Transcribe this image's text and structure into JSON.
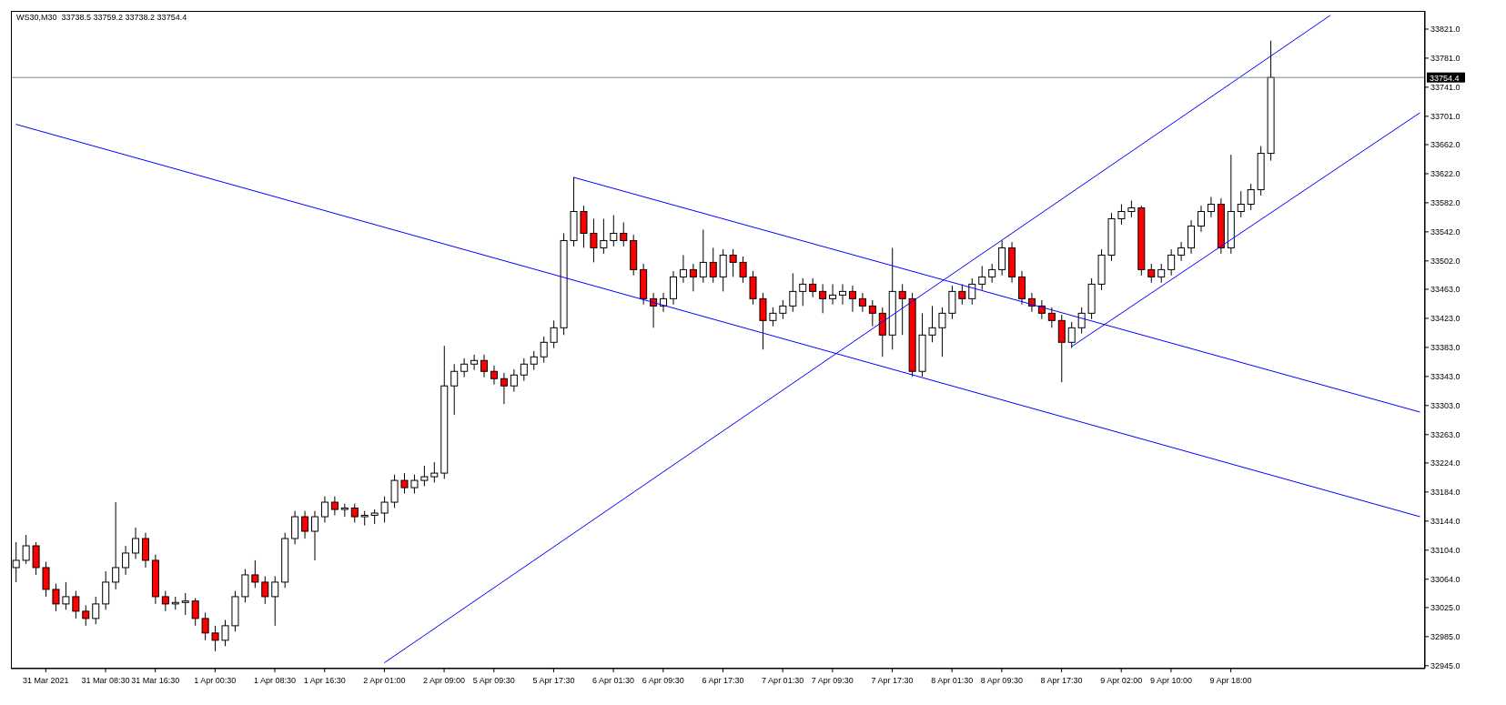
{
  "chart_data": {
    "type": "candlestick",
    "title": "WS30,M30  33738.5 33759.2 33738.2 33754.4",
    "categories": [
      null,
      null,
      null,
      "31 Mar 2021",
      null,
      null,
      null,
      null,
      null,
      "31 Mar 08:30",
      null,
      null,
      null,
      null,
      "31 Mar 16:30",
      null,
      null,
      null,
      null,
      null,
      "1 Apr 00:30",
      null,
      null,
      null,
      null,
      null,
      "1 Apr 08:30",
      null,
      null,
      null,
      null,
      "1 Apr 16:30",
      null,
      null,
      null,
      null,
      null,
      "2 Apr 01:00",
      null,
      null,
      null,
      null,
      null,
      "2 Apr 09:00",
      null,
      null,
      null,
      null,
      "5 Apr 09:30",
      null,
      null,
      null,
      null,
      null,
      "5 Apr 17:30",
      null,
      null,
      null,
      null,
      null,
      "6 Apr 01:30",
      null,
      null,
      null,
      null,
      "6 Apr 09:30",
      null,
      null,
      null,
      null,
      null,
      "6 Apr 17:30",
      null,
      null,
      null,
      null,
      null,
      "7 Apr 01:30",
      null,
      null,
      null,
      null,
      "7 Apr 09:30",
      null,
      null,
      null,
      null,
      null,
      "7 Apr 17:30",
      null,
      null,
      null,
      null,
      null,
      "8 Apr 01:30",
      null,
      null,
      null,
      null,
      "8 Apr 09:30",
      null,
      null,
      null,
      null,
      null,
      "8 Apr 17:30",
      null,
      null,
      null,
      null,
      null,
      "9 Apr 02:00",
      null,
      null,
      null,
      null,
      "9 Apr 10:00",
      null,
      null,
      null,
      null,
      null,
      "9 Apr 18:00",
      null,
      null,
      null,
      null,
      null,
      null,
      null,
      null,
      null,
      null,
      null,
      null,
      null,
      null,
      null,
      null,
      null,
      null,
      null
    ],
    "ohlc": [
      [
        33080,
        33115,
        33060,
        33090
      ],
      [
        33090,
        33125,
        33085,
        33110
      ],
      [
        33110,
        33115,
        33070,
        33080
      ],
      [
        33080,
        33088,
        33040,
        33050
      ],
      [
        33050,
        33058,
        33020,
        33030
      ],
      [
        33030,
        33060,
        33022,
        33040
      ],
      [
        33040,
        33048,
        33010,
        33020
      ],
      [
        33020,
        33028,
        33000,
        33010
      ],
      [
        33010,
        33040,
        33002,
        33030
      ],
      [
        33030,
        33075,
        33022,
        33060
      ],
      [
        33060,
        33170,
        33050,
        33080
      ],
      [
        33080,
        33110,
        33070,
        33100
      ],
      [
        33100,
        33135,
        33092,
        33120
      ],
      [
        33120,
        33128,
        33080,
        33090
      ],
      [
        33090,
        33098,
        33030,
        33040
      ],
      [
        33040,
        33048,
        33020,
        33030
      ],
      [
        33030,
        33040,
        33022,
        33032
      ],
      [
        33032,
        33045,
        33015,
        33034
      ],
      [
        33034,
        33038,
        33000,
        33010
      ],
      [
        33010,
        33018,
        32980,
        32990
      ],
      [
        32990,
        33000,
        32965,
        32980
      ],
      [
        32980,
        33008,
        32972,
        33000
      ],
      [
        33000,
        33048,
        32992,
        33040
      ],
      [
        33040,
        33078,
        33032,
        33070
      ],
      [
        33070,
        33090,
        33052,
        33060
      ],
      [
        33060,
        33068,
        33030,
        33040
      ],
      [
        33040,
        33068,
        33000,
        33060
      ],
      [
        33060,
        33128,
        33052,
        33120
      ],
      [
        33120,
        33158,
        33112,
        33150
      ],
      [
        33150,
        33158,
        33120,
        33130
      ],
      [
        33130,
        33158,
        33090,
        33150
      ],
      [
        33150,
        33178,
        33142,
        33170
      ],
      [
        33170,
        33178,
        33152,
        33160
      ],
      [
        33160,
        33168,
        33150,
        33162
      ],
      [
        33162,
        33168,
        33142,
        33150
      ],
      [
        33150,
        33158,
        33138,
        33152
      ],
      [
        33152,
        33160,
        33140,
        33155
      ],
      [
        33155,
        33178,
        33142,
        33170
      ],
      [
        33170,
        33208,
        33162,
        33200
      ],
      [
        33200,
        33210,
        33182,
        33190
      ],
      [
        33190,
        33208,
        33182,
        33200
      ],
      [
        33200,
        33220,
        33192,
        33205
      ],
      [
        33205,
        33225,
        33197,
        33210
      ],
      [
        33210,
        33385,
        33202,
        33330
      ],
      [
        33330,
        33360,
        33290,
        33350
      ],
      [
        33350,
        33368,
        33342,
        33360
      ],
      [
        33360,
        33373,
        33352,
        33365
      ],
      [
        33365,
        33373,
        33342,
        33350
      ],
      [
        33350,
        33358,
        33332,
        33340
      ],
      [
        33340,
        33348,
        33305,
        33330
      ],
      [
        33330,
        33353,
        33322,
        33345
      ],
      [
        33345,
        33368,
        33337,
        33360
      ],
      [
        33360,
        33378,
        33352,
        33370
      ],
      [
        33370,
        33398,
        33362,
        33390
      ],
      [
        33390,
        33420,
        33382,
        33410
      ],
      [
        33410,
        33540,
        33400,
        33530
      ],
      [
        33530,
        33617,
        33522,
        33570
      ],
      [
        33570,
        33578,
        33520,
        33540
      ],
      [
        33540,
        33560,
        33500,
        33520
      ],
      [
        33520,
        33560,
        33512,
        33530
      ],
      [
        33530,
        33565,
        33522,
        33540
      ],
      [
        33540,
        33555,
        33522,
        33530
      ],
      [
        33530,
        33538,
        33482,
        33490
      ],
      [
        33490,
        33498,
        33442,
        33450
      ],
      [
        33450,
        33458,
        33410,
        33440
      ],
      [
        33440,
        33458,
        33432,
        33450
      ],
      [
        33450,
        33488,
        33442,
        33480
      ],
      [
        33480,
        33510,
        33472,
        33490
      ],
      [
        33490,
        33498,
        33460,
        33480
      ],
      [
        33480,
        33545,
        33472,
        33500
      ],
      [
        33500,
        33520,
        33472,
        33480
      ],
      [
        33480,
        33518,
        33460,
        33510
      ],
      [
        33510,
        33518,
        33480,
        33500
      ],
      [
        33500,
        33508,
        33472,
        33480
      ],
      [
        33480,
        33488,
        33442,
        33450
      ],
      [
        33450,
        33458,
        33380,
        33420
      ],
      [
        33420,
        33438,
        33412,
        33430
      ],
      [
        33430,
        33448,
        33422,
        33440
      ],
      [
        33440,
        33485,
        33432,
        33460
      ],
      [
        33460,
        33478,
        33440,
        33470
      ],
      [
        33470,
        33478,
        33452,
        33460
      ],
      [
        33460,
        33470,
        33430,
        33450
      ],
      [
        33450,
        33470,
        33442,
        33455
      ],
      [
        33455,
        33470,
        33442,
        33460
      ],
      [
        33460,
        33468,
        33432,
        33450
      ],
      [
        33450,
        33458,
        33432,
        33440
      ],
      [
        33440,
        33448,
        33412,
        33430
      ],
      [
        33430,
        33438,
        33370,
        33400
      ],
      [
        33400,
        33520,
        33380,
        33460
      ],
      [
        33460,
        33470,
        33400,
        33450
      ],
      [
        33450,
        33458,
        33343,
        33350
      ],
      [
        33350,
        33430,
        33343,
        33400
      ],
      [
        33400,
        33440,
        33390,
        33410
      ],
      [
        33410,
        33438,
        33370,
        33430
      ],
      [
        33430,
        33468,
        33422,
        33460
      ],
      [
        33460,
        33470,
        33442,
        33450
      ],
      [
        33450,
        33478,
        33442,
        33470
      ],
      [
        33470,
        33495,
        33462,
        33480
      ],
      [
        33480,
        33498,
        33472,
        33490
      ],
      [
        33490,
        33530,
        33482,
        33520
      ],
      [
        33520,
        33528,
        33472,
        33480
      ],
      [
        33480,
        33488,
        33442,
        33450
      ],
      [
        33450,
        33458,
        33432,
        33440
      ],
      [
        33440,
        33448,
        33422,
        33430
      ],
      [
        33430,
        33438,
        33410,
        33420
      ],
      [
        33420,
        33428,
        33335,
        33390
      ],
      [
        33390,
        33418,
        33382,
        33410
      ],
      [
        33410,
        33438,
        33402,
        33430
      ],
      [
        33430,
        33478,
        33422,
        33470
      ],
      [
        33470,
        33518,
        33462,
        33510
      ],
      [
        33510,
        33568,
        33502,
        33560
      ],
      [
        33560,
        33580,
        33552,
        33570
      ],
      [
        33570,
        33585,
        33562,
        33575
      ],
      [
        33575,
        33578,
        33482,
        33490
      ],
      [
        33490,
        33498,
        33472,
        33480
      ],
      [
        33480,
        33498,
        33472,
        33490
      ],
      [
        33490,
        33518,
        33482,
        33510
      ],
      [
        33510,
        33528,
        33502,
        33520
      ],
      [
        33520,
        33558,
        33512,
        33550
      ],
      [
        33550,
        33578,
        33542,
        33570
      ],
      [
        33570,
        33590,
        33562,
        33580
      ],
      [
        33580,
        33588,
        33512,
        33520
      ],
      [
        33520,
        33648,
        33512,
        33570
      ],
      [
        33570,
        33598,
        33562,
        33580
      ],
      [
        33580,
        33608,
        33572,
        33600
      ],
      [
        33600,
        33660,
        33592,
        33650
      ],
      [
        33650,
        33805,
        33640,
        33754.4
      ],
      null,
      null,
      null,
      null,
      null,
      null,
      null,
      null,
      null,
      null,
      null,
      null,
      null,
      null,
      null
    ],
    "colors": [
      "#ffffff",
      "#ffffff",
      "#ff0000",
      "#ff0000",
      "#ff0000",
      "#ffffff",
      "#ff0000",
      "#ff0000",
      "#ffffff",
      "#ffffff",
      "#ffffff",
      "#ffffff",
      "#ffffff",
      "#ff0000",
      "#ff0000",
      "#ff0000",
      "#ffffff",
      "#ffffff",
      "#ff0000",
      "#ff0000",
      "#ff0000",
      "#ffffff",
      "#ffffff",
      "#ffffff",
      "#ff0000",
      "#ff0000",
      "#ffffff",
      "#ffffff",
      "#ffffff",
      "#ff0000",
      "#ffffff",
      "#ffffff",
      "#ff0000",
      "#ffffff",
      "#ff0000",
      "#ffffff",
      "#ffffff",
      "#ffffff",
      "#ffffff",
      "#ff0000",
      "#ffffff",
      "#ffffff",
      "#ffffff",
      "#ffffff",
      "#ffffff",
      "#ffffff",
      "#ffffff",
      "#ff0000",
      "#ff0000",
      "#ff0000",
      "#ffffff",
      "#ffffff",
      "#ffffff",
      "#ffffff",
      "#ffffff",
      "#ffffff",
      "#ffffff",
      "#ff0000",
      "#ff0000",
      "#ffffff",
      "#ffffff",
      "#ff0000",
      "#ff0000",
      "#ff0000",
      "#ff0000",
      "#ffffff",
      "#ffffff",
      "#ffffff",
      "#ff0000",
      "#ffffff",
      "#ff0000",
      "#ffffff",
      "#ff0000",
      "#ff0000",
      "#ff0000",
      "#ff0000",
      "#ffffff",
      "#ffffff",
      "#ffffff",
      "#ffffff",
      "#ff0000",
      "#ff0000",
      "#ffffff",
      "#ffffff",
      "#ff0000",
      "#ff0000",
      "#ff0000",
      "#ff0000",
      "#ffffff",
      "#ff0000",
      "#ff0000",
      "#ffffff",
      "#ffffff",
      "#ffffff",
      "#ffffff",
      "#ff0000",
      "#ffffff",
      "#ffffff",
      "#ffffff",
      "#ffffff",
      "#ff0000",
      "#ff0000",
      "#ff0000",
      "#ff0000",
      "#ff0000",
      "#ff0000",
      "#ffffff",
      "#ffffff",
      "#ffffff",
      "#ffffff",
      "#ffffff",
      "#ffffff",
      "#ffffff",
      "#ff0000",
      "#ff0000",
      "#ffffff",
      "#ffffff",
      "#ffffff",
      "#ffffff",
      "#ffffff",
      "#ffffff",
      "#ff0000",
      "#ffffff",
      "#ffffff",
      "#ffffff",
      "#ffffff",
      "#ffffff",
      null,
      null,
      null,
      null,
      null,
      null,
      null,
      null,
      null,
      null,
      null,
      null,
      null,
      null,
      null
    ],
    "series": [
      {
        "type": "line",
        "color": "#0000ff",
        "values": [
          33690,
          null,
          null,
          null,
          null,
          null,
          null,
          null,
          null,
          null,
          null,
          null,
          null,
          null,
          null,
          null,
          null,
          null,
          null,
          null,
          null,
          null,
          null,
          null,
          null,
          null,
          null,
          null,
          null,
          null,
          null,
          null,
          null,
          null,
          null,
          null,
          null,
          null,
          null,
          null,
          null,
          null,
          null,
          null,
          null,
          null,
          null,
          null,
          null,
          null,
          null,
          null,
          null,
          null,
          null,
          null,
          null,
          null,
          null,
          null,
          null,
          null,
          null,
          null,
          null,
          null,
          null,
          null,
          null,
          null,
          null,
          null,
          null,
          null,
          null,
          null,
          null,
          null,
          null,
          null,
          null,
          null,
          null,
          null,
          null,
          null,
          null,
          null,
          null,
          null,
          null,
          null,
          null,
          null,
          null,
          null,
          null,
          null,
          null,
          null,
          null,
          null,
          null,
          null,
          null,
          null,
          null,
          null,
          null,
          null,
          null,
          null,
          null,
          null,
          null,
          null,
          null,
          null,
          null,
          null,
          null,
          null,
          null,
          null,
          null,
          null,
          null,
          null,
          null,
          null,
          null,
          null,
          null,
          null,
          null,
          null,
          null,
          null,
          null,
          null,
          null,
          33150
        ]
      },
      {
        "type": "line",
        "color": "#0000ff",
        "values": [
          null,
          null,
          null,
          null,
          null,
          null,
          null,
          null,
          null,
          null,
          null,
          null,
          null,
          null,
          null,
          null,
          null,
          null,
          null,
          null,
          null,
          null,
          null,
          null,
          null,
          null,
          null,
          null,
          null,
          null,
          null,
          null,
          null,
          null,
          null,
          null,
          null,
          null,
          null,
          null,
          null,
          null,
          null,
          null,
          null,
          null,
          null,
          null,
          null,
          null,
          null,
          null,
          null,
          null,
          null,
          null,
          33617,
          null,
          null,
          null,
          null,
          null,
          null,
          null,
          null,
          null,
          null,
          null,
          null,
          null,
          null,
          null,
          null,
          null,
          null,
          null,
          null,
          null,
          null,
          null,
          null,
          null,
          null,
          null,
          null,
          null,
          null,
          null,
          null,
          null,
          null,
          null,
          null,
          null,
          null,
          null,
          null,
          null,
          null,
          null,
          null,
          null,
          null,
          null,
          null,
          null,
          null,
          null,
          null,
          null,
          null,
          null,
          null,
          null,
          null,
          null,
          null,
          null,
          null,
          null,
          null,
          null,
          null,
          null,
          null,
          null,
          null,
          null,
          null,
          null,
          null,
          null,
          null,
          null,
          null,
          null,
          null,
          null,
          null,
          null,
          null,
          33294
        ]
      },
      {
        "type": "line",
        "color": "#0000ff",
        "values": [
          null,
          null,
          null,
          null,
          null,
          null,
          null,
          null,
          null,
          null,
          null,
          null,
          null,
          null,
          null,
          null,
          null,
          null,
          null,
          null,
          null,
          null,
          null,
          null,
          null,
          null,
          null,
          null,
          null,
          null,
          null,
          null,
          null,
          null,
          null,
          null,
          null,
          32949,
          null,
          null,
          null,
          null,
          null,
          null,
          null,
          null,
          null,
          null,
          null,
          null,
          null,
          null,
          null,
          null,
          null,
          null,
          null,
          null,
          null,
          null,
          null,
          null,
          null,
          null,
          null,
          null,
          null,
          null,
          null,
          null,
          null,
          null,
          null,
          null,
          null,
          null,
          null,
          null,
          null,
          null,
          null,
          null,
          null,
          null,
          null,
          null,
          null,
          null,
          null,
          null,
          null,
          null,
          null,
          null,
          null,
          null,
          null,
          null,
          null,
          null,
          null,
          null,
          null,
          null,
          null,
          null,
          null,
          null,
          null,
          null,
          null,
          null,
          null,
          null,
          null,
          null,
          null,
          null,
          null,
          null,
          null,
          null,
          null,
          null,
          null,
          null,
          null,
          null,
          null,
          null,
          null,
          null,
          33840,
          null,
          null,
          null,
          null,
          null,
          null,
          null,
          null,
          null
        ]
      },
      {
        "type": "line",
        "color": "#0000ff",
        "values": [
          null,
          null,
          null,
          null,
          null,
          null,
          null,
          null,
          null,
          null,
          null,
          null,
          null,
          null,
          null,
          null,
          null,
          null,
          null,
          null,
          null,
          null,
          null,
          null,
          null,
          null,
          null,
          null,
          null,
          null,
          null,
          null,
          null,
          null,
          null,
          null,
          null,
          null,
          null,
          null,
          null,
          null,
          null,
          null,
          null,
          null,
          null,
          null,
          null,
          null,
          null,
          null,
          null,
          null,
          null,
          null,
          null,
          null,
          null,
          null,
          null,
          null,
          null,
          null,
          null,
          null,
          null,
          null,
          null,
          null,
          null,
          null,
          null,
          null,
          null,
          null,
          null,
          null,
          null,
          null,
          null,
          null,
          null,
          null,
          null,
          null,
          null,
          null,
          null,
          null,
          null,
          null,
          null,
          null,
          null,
          null,
          null,
          null,
          null,
          null,
          null,
          null,
          null,
          null,
          null,
          null,
          33384,
          null,
          null,
          null,
          null,
          null,
          null,
          null,
          null,
          null,
          null,
          null,
          null,
          null,
          null,
          null,
          null,
          null,
          null,
          null,
          null,
          null,
          null,
          null,
          null,
          null,
          null,
          null,
          null,
          null,
          null,
          null,
          null,
          null,
          null,
          33706
        ]
      }
    ],
    "ylim": [
      32941,
      33846
    ],
    "yticks": [
      {
        "value": 32945,
        "label": "32945.0"
      },
      {
        "value": 32985,
        "label": "32985.0"
      },
      {
        "value": 33025,
        "label": "33025.0"
      },
      {
        "value": 33064,
        "label": "33064.0"
      },
      {
        "value": 33104,
        "label": "33104.0"
      },
      {
        "value": 33144,
        "label": "33144.0"
      },
      {
        "value": 33184,
        "label": "33184.0"
      },
      {
        "value": 33224,
        "label": "33224.0"
      },
      {
        "value": 33263,
        "label": "33263.0"
      },
      {
        "value": 33303,
        "label": "33303.0"
      },
      {
        "value": 33343,
        "label": "33343.0"
      },
      {
        "value": 33383,
        "label": "33383.0"
      },
      {
        "value": 33423,
        "label": "33423.0"
      },
      {
        "value": 33463,
        "label": "33463.0"
      },
      {
        "value": 33502,
        "label": "33502.0"
      },
      {
        "value": 33542,
        "label": "33542.0"
      },
      {
        "value": 33582,
        "label": "33582.0"
      },
      {
        "value": 33622,
        "label": "33622.0"
      },
      {
        "value": 33662,
        "label": "33662.0"
      },
      {
        "value": 33701,
        "label": "33701.0"
      },
      {
        "value": 33741,
        "label": "33741.0"
      },
      {
        "value": 33781,
        "label": "33781.0"
      },
      {
        "value": 33821,
        "label": "33821.0"
      }
    ],
    "ref_lines": [
      {
        "axis": "y",
        "value": 33754.4,
        "label": "33754.4",
        "color": "#778899"
      }
    ]
  }
}
